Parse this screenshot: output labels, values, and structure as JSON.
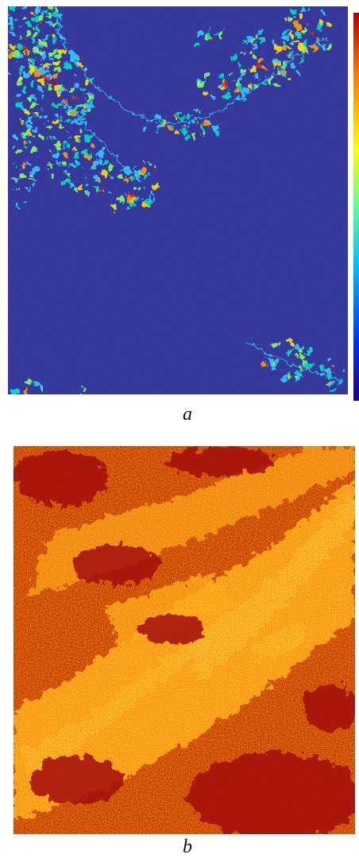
{
  "panels": [
    {
      "id": "a",
      "caption": "a",
      "description_colormap": "jet",
      "dominant_color": "#2d2f96",
      "highlight_colors": [
        "#ff1a00",
        "#ffb000",
        "#33d0ff",
        "#00ffaa"
      ]
    },
    {
      "id": "b",
      "caption": "b",
      "description_colormap": "jet",
      "dominant_color": "#b3160c",
      "highlight_colors": [
        "#ff7a00",
        "#ffe000",
        "#33d0ff",
        "#2f56ff"
      ]
    }
  ],
  "colorbar": {
    "colormap": "jet",
    "stops": [
      "#200080",
      "#0030ff",
      "#00c0ff",
      "#60ff90",
      "#ffff00",
      "#ff7000",
      "#b00000"
    ]
  }
}
